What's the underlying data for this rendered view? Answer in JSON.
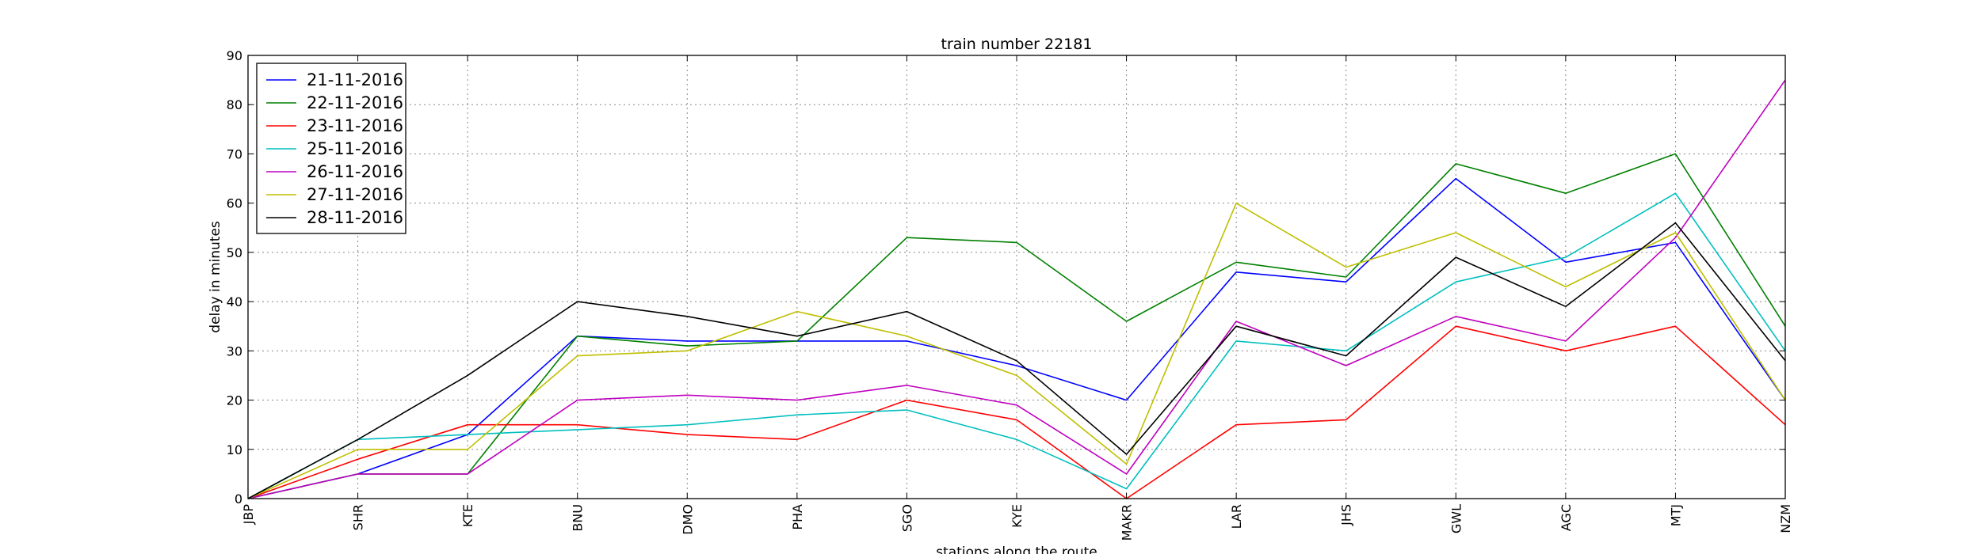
{
  "chart_data": {
    "type": "line",
    "title": "train number 22181",
    "xlabel": "stations along the route",
    "ylabel": "delay in minutes",
    "categories": [
      "JBP",
      "SHR",
      "KTE",
      "BNU",
      "DMO",
      "PHA",
      "SGO",
      "KYE",
      "MAKR",
      "LAR",
      "JHS",
      "GWL",
      "AGC",
      "MTJ",
      "NZM"
    ],
    "ylim": [
      0,
      90
    ],
    "yticks": [
      0,
      10,
      20,
      30,
      40,
      50,
      60,
      70,
      80,
      90
    ],
    "grid": true,
    "legend_position": "top-left",
    "series": [
      {
        "name": "21-11-2016",
        "color": "#0000ff",
        "values": [
          0,
          5,
          13,
          33,
          32,
          32,
          32,
          27,
          20,
          46,
          44,
          65,
          48,
          52,
          20
        ]
      },
      {
        "name": "22-11-2016",
        "color": "#008000",
        "values": [
          0,
          5,
          5,
          33,
          31,
          32,
          53,
          52,
          36,
          48,
          45,
          68,
          62,
          70,
          35
        ]
      },
      {
        "name": "23-11-2016",
        "color": "#ff0000",
        "values": [
          0,
          8,
          15,
          15,
          13,
          12,
          20,
          16,
          0,
          15,
          16,
          35,
          30,
          35,
          15
        ]
      },
      {
        "name": "25-11-2016",
        "color": "#00bfbf",
        "values": [
          0,
          12,
          13,
          14,
          15,
          17,
          18,
          12,
          2,
          32,
          30,
          44,
          49,
          62,
          30
        ]
      },
      {
        "name": "26-11-2016",
        "color": "#bf00bf",
        "values": [
          0,
          5,
          5,
          20,
          21,
          20,
          23,
          19,
          5,
          36,
          27,
          37,
          32,
          53,
          85
        ]
      },
      {
        "name": "27-11-2016",
        "color": "#bfbf00",
        "values": [
          0,
          10,
          10,
          29,
          30,
          38,
          33,
          25,
          7,
          60,
          47,
          54,
          43,
          54,
          20
        ]
      },
      {
        "name": "28-11-2016",
        "color": "#000000",
        "values": [
          0,
          12,
          25,
          40,
          37,
          33,
          38,
          28,
          9,
          35,
          29,
          49,
          39,
          56,
          28
        ]
      }
    ]
  }
}
